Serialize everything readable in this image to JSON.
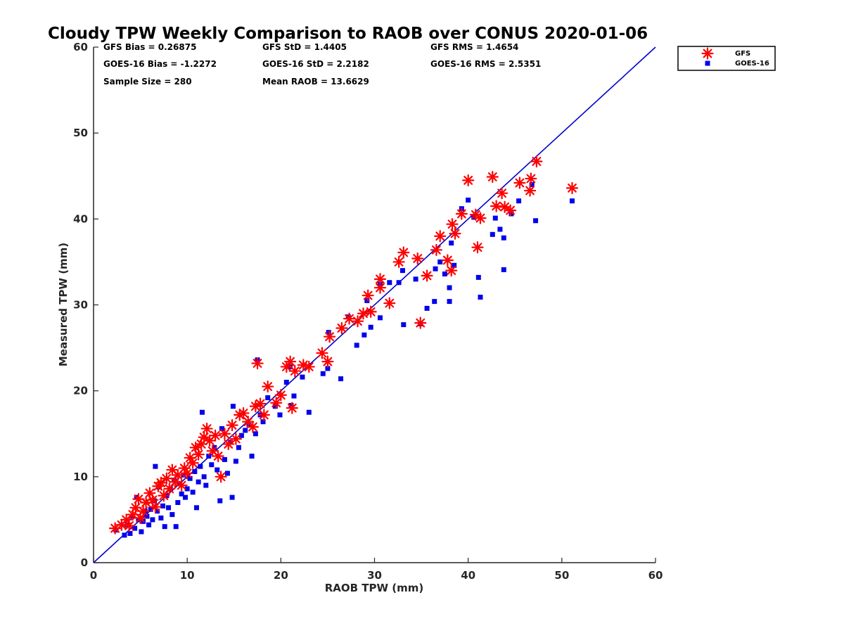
{
  "chart_data": {
    "type": "scatter",
    "title": "Cloudy TPW Weekly Comparison to RAOB over CONUS 2020-01-06",
    "xlabel": "RAOB TPW (mm)",
    "ylabel": "Measured TPW (mm)",
    "xlim": [
      0,
      60
    ],
    "ylim": [
      0,
      60
    ],
    "xticks": [
      "0",
      "10",
      "20",
      "30",
      "40",
      "50",
      "60"
    ],
    "yticks": [
      "0",
      "10",
      "20",
      "30",
      "40",
      "50",
      "60"
    ],
    "grid": false,
    "legend_position": "outside-top-right",
    "reference_line": {
      "x": [
        0,
        60
      ],
      "y": [
        0,
        60
      ],
      "color": "#0000cc"
    },
    "stats": {
      "gfs_bias": "GFS Bias = 0.26875",
      "gfs_std": "GFS StD = 1.4405",
      "gfs_rms": "GFS RMS = 1.4654",
      "goes_bias": "GOES-16 Bias = -1.2272",
      "goes_std": "GOES-16 StD = 2.2182",
      "goes_rms": "GOES-16 RMS = 2.5351",
      "sample_size": "Sample Size = 280",
      "mean_raob": "Mean RAOB = 13.6629"
    },
    "series": [
      {
        "name": "GFS",
        "marker": "asterisk",
        "color": "#ff0000",
        "points": [
          [
            2.3,
            4.0
          ],
          [
            3.0,
            4.4
          ],
          [
            3.5,
            5.0
          ],
          [
            3.8,
            4.3
          ],
          [
            4.2,
            5.6
          ],
          [
            4.5,
            6.4
          ],
          [
            4.8,
            7.4
          ],
          [
            5.0,
            5.2
          ],
          [
            5.3,
            6.0
          ],
          [
            5.6,
            7.0
          ],
          [
            6.0,
            8.1
          ],
          [
            6.3,
            7.3
          ],
          [
            6.6,
            6.5
          ],
          [
            6.9,
            8.9
          ],
          [
            7.2,
            9.3
          ],
          [
            7.5,
            7.8
          ],
          [
            7.8,
            9.8
          ],
          [
            8.1,
            8.6
          ],
          [
            8.4,
            10.8
          ],
          [
            8.7,
            9.4
          ],
          [
            9.0,
            10.2
          ],
          [
            9.4,
            9.0
          ],
          [
            9.7,
            11.0
          ],
          [
            10.0,
            10.4
          ],
          [
            10.3,
            12.2
          ],
          [
            10.6,
            11.6
          ],
          [
            10.9,
            13.4
          ],
          [
            11.2,
            12.6
          ],
          [
            11.5,
            13.8
          ],
          [
            11.8,
            14.6
          ],
          [
            12.1,
            15.6
          ],
          [
            12.4,
            14.2
          ],
          [
            12.7,
            13.0
          ],
          [
            13.0,
            14.8
          ],
          [
            13.3,
            12.4
          ],
          [
            13.6,
            10.0
          ],
          [
            14.0,
            15.0
          ],
          [
            14.4,
            13.8
          ],
          [
            14.8,
            16.0
          ],
          [
            15.2,
            14.4
          ],
          [
            15.6,
            17.2
          ],
          [
            16.0,
            17.4
          ],
          [
            16.5,
            16.4
          ],
          [
            17.0,
            15.8
          ],
          [
            17.3,
            18.2
          ],
          [
            17.5,
            23.2
          ],
          [
            17.8,
            18.5
          ],
          [
            18.2,
            17.2
          ],
          [
            18.6,
            20.5
          ],
          [
            19.5,
            18.6
          ],
          [
            20.0,
            19.5
          ],
          [
            20.6,
            22.8
          ],
          [
            21.0,
            23.4
          ],
          [
            21.2,
            18.0
          ],
          [
            21.5,
            22.3
          ],
          [
            22.4,
            23.0
          ],
          [
            23.0,
            22.8
          ],
          [
            24.4,
            24.4
          ],
          [
            25.0,
            23.4
          ],
          [
            25.2,
            26.3
          ],
          [
            26.5,
            27.3
          ],
          [
            27.3,
            28.4
          ],
          [
            28.2,
            28.1
          ],
          [
            28.8,
            29.0
          ],
          [
            29.3,
            31.1
          ],
          [
            29.6,
            29.2
          ],
          [
            30.6,
            33.0
          ],
          [
            30.6,
            32.0
          ],
          [
            31.6,
            30.2
          ],
          [
            32.6,
            35.0
          ],
          [
            33.1,
            36.1
          ],
          [
            34.6,
            35.4
          ],
          [
            34.9,
            27.9
          ],
          [
            35.6,
            33.4
          ],
          [
            36.6,
            36.4
          ],
          [
            37.0,
            38.0
          ],
          [
            37.8,
            35.2
          ],
          [
            38.2,
            34.0
          ],
          [
            38.3,
            39.4
          ],
          [
            38.6,
            38.3
          ],
          [
            39.3,
            40.6
          ],
          [
            40.0,
            44.5
          ],
          [
            40.8,
            40.5
          ],
          [
            41.0,
            36.7
          ],
          [
            41.3,
            40.1
          ],
          [
            42.6,
            44.9
          ],
          [
            43.0,
            41.5
          ],
          [
            43.6,
            43.0
          ],
          [
            43.9,
            41.4
          ],
          [
            44.5,
            41.0
          ],
          [
            45.5,
            44.2
          ],
          [
            46.6,
            43.3
          ],
          [
            46.7,
            44.7
          ],
          [
            47.3,
            46.7
          ],
          [
            51.1,
            43.6
          ]
        ]
      },
      {
        "name": "GOES-16",
        "marker": "square",
        "color": "#0000ee",
        "points": [
          [
            2.4,
            3.8
          ],
          [
            3.3,
            3.2
          ],
          [
            3.6,
            4.4
          ],
          [
            3.9,
            3.4
          ],
          [
            4.1,
            5.4
          ],
          [
            4.4,
            4.0
          ],
          [
            4.6,
            7.6
          ],
          [
            4.8,
            5.0
          ],
          [
            5.1,
            3.6
          ],
          [
            5.3,
            4.8
          ],
          [
            5.5,
            6.0
          ],
          [
            5.7,
            5.4
          ],
          [
            5.9,
            4.4
          ],
          [
            6.1,
            6.2
          ],
          [
            6.3,
            5.0
          ],
          [
            6.5,
            7.2
          ],
          [
            6.6,
            11.2
          ],
          [
            6.8,
            6.0
          ],
          [
            7.0,
            8.8
          ],
          [
            7.2,
            5.2
          ],
          [
            7.4,
            6.6
          ],
          [
            7.6,
            4.2
          ],
          [
            7.8,
            7.8
          ],
          [
            8.0,
            6.4
          ],
          [
            8.2,
            8.6
          ],
          [
            8.4,
            5.6
          ],
          [
            8.6,
            9.6
          ],
          [
            8.8,
            4.2
          ],
          [
            9.0,
            7.0
          ],
          [
            9.2,
            9.2
          ],
          [
            9.4,
            8.0
          ],
          [
            9.6,
            10.2
          ],
          [
            9.8,
            7.6
          ],
          [
            10.0,
            8.6
          ],
          [
            10.3,
            9.8
          ],
          [
            10.6,
            8.2
          ],
          [
            10.8,
            10.6
          ],
          [
            11.0,
            6.4
          ],
          [
            11.2,
            9.4
          ],
          [
            11.4,
            11.2
          ],
          [
            11.6,
            17.5
          ],
          [
            11.8,
            10.0
          ],
          [
            12.0,
            9.0
          ],
          [
            12.3,
            12.4
          ],
          [
            12.6,
            11.4
          ],
          [
            12.9,
            13.4
          ],
          [
            13.2,
            10.8
          ],
          [
            13.5,
            7.2
          ],
          [
            13.7,
            15.6
          ],
          [
            14.0,
            12.0
          ],
          [
            14.3,
            10.4
          ],
          [
            14.6,
            14.0
          ],
          [
            14.8,
            7.6
          ],
          [
            14.9,
            18.2
          ],
          [
            15.2,
            11.8
          ],
          [
            15.5,
            13.4
          ],
          [
            15.8,
            14.8
          ],
          [
            16.2,
            15.4
          ],
          [
            16.6,
            16.0
          ],
          [
            16.9,
            12.4
          ],
          [
            17.3,
            15.0
          ],
          [
            17.5,
            23.6
          ],
          [
            17.8,
            17.2
          ],
          [
            18.1,
            16.4
          ],
          [
            18.6,
            19.2
          ],
          [
            19.4,
            18.2
          ],
          [
            19.9,
            17.2
          ],
          [
            20.6,
            21.0
          ],
          [
            21.0,
            22.8
          ],
          [
            21.1,
            18.3
          ],
          [
            21.4,
            19.4
          ],
          [
            22.3,
            21.6
          ],
          [
            23.0,
            17.5
          ],
          [
            24.5,
            22.0
          ],
          [
            25.0,
            22.6
          ],
          [
            25.1,
            26.8
          ],
          [
            26.4,
            21.4
          ],
          [
            27.2,
            28.6
          ],
          [
            28.1,
            25.3
          ],
          [
            28.9,
            26.5
          ],
          [
            29.2,
            30.5
          ],
          [
            29.6,
            27.4
          ],
          [
            30.6,
            28.5
          ],
          [
            30.6,
            32.4
          ],
          [
            31.6,
            32.6
          ],
          [
            32.6,
            32.6
          ],
          [
            33.0,
            34.0
          ],
          [
            33.1,
            27.7
          ],
          [
            34.4,
            33.0
          ],
          [
            34.9,
            27.8
          ],
          [
            35.6,
            29.6
          ],
          [
            36.4,
            30.4
          ],
          [
            36.5,
            34.2
          ],
          [
            37.0,
            35.0
          ],
          [
            37.5,
            33.6
          ],
          [
            38.0,
            32.0
          ],
          [
            38.0,
            30.4
          ],
          [
            38.2,
            37.2
          ],
          [
            38.5,
            34.6
          ],
          [
            39.3,
            41.2
          ],
          [
            40.0,
            42.2
          ],
          [
            40.6,
            40.2
          ],
          [
            41.1,
            33.2
          ],
          [
            41.3,
            30.9
          ],
          [
            42.6,
            38.2
          ],
          [
            42.9,
            40.1
          ],
          [
            43.4,
            38.8
          ],
          [
            43.8,
            37.8
          ],
          [
            43.8,
            34.1
          ],
          [
            44.6,
            40.6
          ],
          [
            45.4,
            42.1
          ],
          [
            46.8,
            44.0
          ],
          [
            47.2,
            39.8
          ],
          [
            51.1,
            42.1
          ]
        ]
      }
    ]
  }
}
